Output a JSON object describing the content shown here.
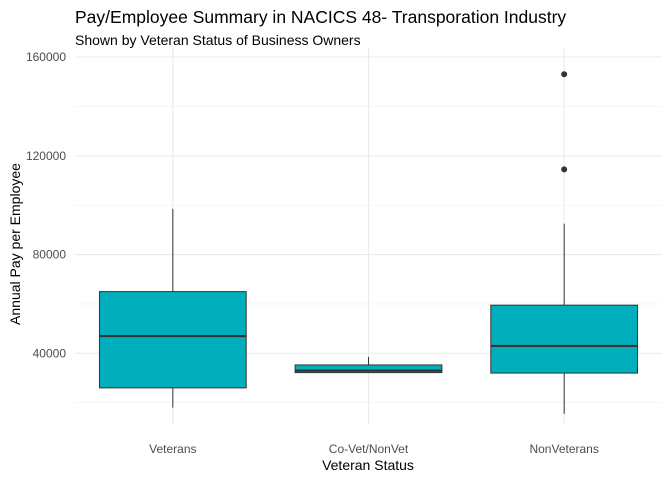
{
  "chart_data": {
    "type": "boxplot",
    "title": "Pay/Employee Summary in NACICS 48- Transporation Industry",
    "subtitle": "Shown by Veteran Status of Business Owners",
    "xlabel": "Veteran Status",
    "ylabel": "Annual Pay per Employee",
    "categories": [
      "Veterans",
      "Co-Vet/NonVet",
      "NonVeterans"
    ],
    "ylim": [
      13000,
      160000
    ],
    "y_ticks": [
      40000,
      80000,
      120000,
      160000
    ],
    "y_tick_labels": [
      "40000",
      "80000",
      "120000",
      "160000"
    ],
    "y_minor_ticks": [
      20000,
      60000,
      100000,
      140000
    ],
    "grid": true,
    "box_color": "#00AFBB",
    "boxes": [
      {
        "category": "Veterans",
        "whisker_low": 18000,
        "q1": 26000,
        "median": 47000,
        "q3": 65000,
        "whisker_high": 98500,
        "outliers": []
      },
      {
        "category": "Co-Vet/NonVet",
        "whisker_low": 32000,
        "q1": 32200,
        "median": 33000,
        "q3": 35300,
        "whisker_high": 38500,
        "outliers": []
      },
      {
        "category": "NonVeterans",
        "whisker_low": 15500,
        "q1": 32000,
        "median": 43000,
        "q3": 59500,
        "whisker_high": 92500,
        "outliers": [
          114500,
          153000
        ]
      }
    ]
  }
}
